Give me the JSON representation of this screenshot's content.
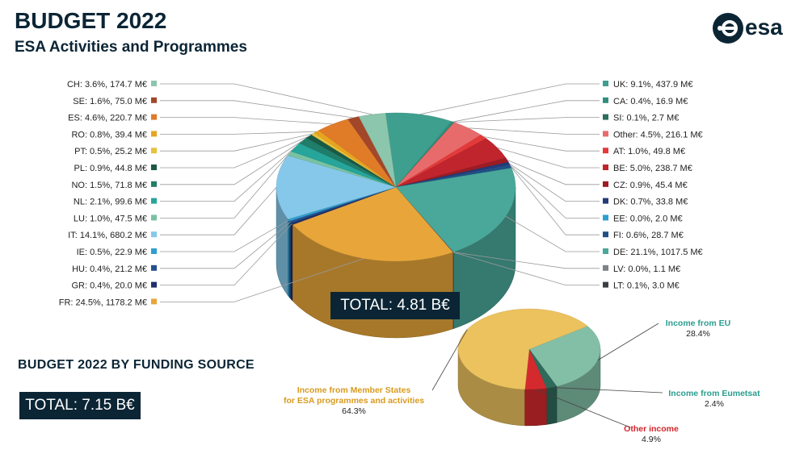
{
  "header": {
    "title": "BUDGET 2022",
    "subtitle": "ESA Activities and Programmes",
    "logo_text": "esa"
  },
  "colors": {
    "dark": "#0b2535",
    "eu": "#2a9d8f",
    "member": "#d99a1e",
    "other": "#d4252b"
  },
  "total_main": "TOTAL: 4.81 B€",
  "section_title": "BUDGET 2022 BY FUNDING SOURCE",
  "total_funding": "TOTAL: 7.15 B€",
  "chart_data": [
    {
      "type": "pie",
      "title": "ESA Activities and Programmes",
      "total": "4.81 B€",
      "slices": [
        {
          "label": "UK: 9.1%, 437.9 M€",
          "value": 437.9,
          "color": "#3e9f8e",
          "side": "right"
        },
        {
          "label": "CA: 0.4%, 16.9 M€",
          "value": 16.9,
          "color": "#2f8f7c",
          "side": "right"
        },
        {
          "label": "SI: 0.1%, 2.7 M€",
          "value": 2.7,
          "color": "#2b6e5e",
          "side": "right"
        },
        {
          "label": "Other: 4.5%, 216.1 M€",
          "value": 216.1,
          "color": "#e86b6b",
          "side": "right"
        },
        {
          "label": "AT: 1.0%, 49.8 M€",
          "value": 49.8,
          "color": "#e43a3a",
          "side": "right"
        },
        {
          "label": "BE: 5.0%, 238.7 M€",
          "value": 238.7,
          "color": "#c0252d",
          "side": "right"
        },
        {
          "label": "CZ: 0.9%, 45.4 M€",
          "value": 45.4,
          "color": "#9c1c24",
          "side": "right"
        },
        {
          "label": "DK: 0.7%, 33.8 M€",
          "value": 33.8,
          "color": "#253a78",
          "side": "right"
        },
        {
          "label": "EE: 0.0%, 2.0 M€",
          "value": 2.0,
          "color": "#2b9fd1",
          "side": "right"
        },
        {
          "label": "FI: 0.6%, 28.7 M€",
          "value": 28.7,
          "color": "#1f4f85",
          "side": "right"
        },
        {
          "label": "DE: 21.1%, 1017.5 M€",
          "value": 1017.5,
          "color": "#4aa89a",
          "side": "right"
        },
        {
          "label": "LV: 0.0%, 1.1 M€",
          "value": 1.1,
          "color": "#7d8386",
          "side": "right"
        },
        {
          "label": "LT: 0.1%, 3.0 M€",
          "value": 3.0,
          "color": "#3a3f44",
          "side": "right"
        },
        {
          "label": "FR: 24.5%, 1178.2 M€",
          "value": 1178.2,
          "color": "#e8a63a",
          "side": "left"
        },
        {
          "label": "GR: 0.4%, 20.0 M€",
          "value": 20.0,
          "color": "#1e2f6b",
          "side": "left"
        },
        {
          "label": "HU: 0.4%, 21.2 M€",
          "value": 21.2,
          "color": "#25508c",
          "side": "left"
        },
        {
          "label": "IE: 0.5%, 22.9 M€",
          "value": 22.9,
          "color": "#2e9fcf",
          "side": "left"
        },
        {
          "label": "IT: 14.1%, 680.2 M€",
          "value": 680.2,
          "color": "#86c8ea",
          "side": "left"
        },
        {
          "label": "LU: 1.0%, 47.5 M€",
          "value": 47.5,
          "color": "#78c2a2",
          "side": "left"
        },
        {
          "label": "NL: 2.1%, 99.6 M€",
          "value": 99.6,
          "color": "#26a59a",
          "side": "left"
        },
        {
          "label": "NO: 1.5%, 71.8 M€",
          "value": 71.8,
          "color": "#1f7d6a",
          "side": "left"
        },
        {
          "label": "PL: 0.9%, 44.8 M€",
          "value": 44.8,
          "color": "#1a5a45",
          "side": "left"
        },
        {
          "label": "PT: 0.5%, 25.2 M€",
          "value": 25.2,
          "color": "#e9c23c",
          "side": "left"
        },
        {
          "label": "RO: 0.8%, 39.4 M€",
          "value": 39.4,
          "color": "#e8a41f",
          "side": "left"
        },
        {
          "label": "ES: 4.6%, 220.7 M€",
          "value": 220.7,
          "color": "#e07b28",
          "side": "left"
        },
        {
          "label": "SE: 1.6%, 75.0 M€",
          "value": 75.0,
          "color": "#a3472a",
          "side": "left"
        },
        {
          "label": "CH: 3.6%, 174.7 M€",
          "value": 174.7,
          "color": "#8cc6ac",
          "side": "left"
        }
      ]
    },
    {
      "type": "pie",
      "title": "BUDGET 2022 BY FUNDING SOURCE",
      "total": "7.15 B€",
      "slices": [
        {
          "name": "Income from EU",
          "pct": "28.4%",
          "value": 28.4,
          "color": "#82bfa6",
          "text_color": "#2a9d8f"
        },
        {
          "name": "Income from Eumetsat",
          "pct": "2.4%",
          "value": 2.4,
          "color": "#2e6b5c",
          "text_color": "#2a9d8f"
        },
        {
          "name": "Other income",
          "pct": "4.9%",
          "value": 4.9,
          "color": "#d42a2e",
          "text_color": "#d4252b"
        },
        {
          "name": "Income from Member States\nfor ESA programmes and activities",
          "pct": "64.3%",
          "value": 64.3,
          "color": "#ecc25e",
          "text_color": "#d99a1e"
        }
      ]
    }
  ]
}
